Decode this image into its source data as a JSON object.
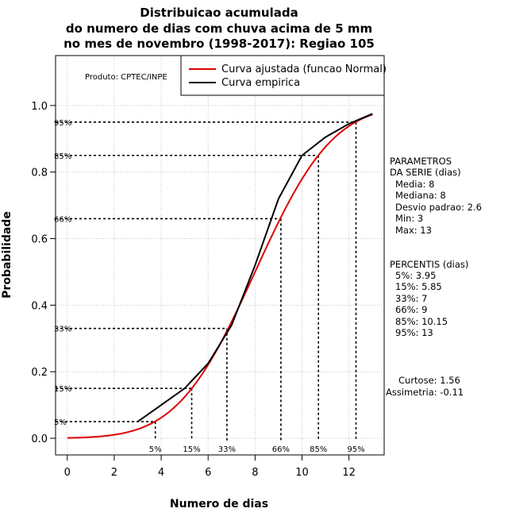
{
  "chart_data": {
    "type": "line",
    "title_lines": [
      "Distribuicao acumulada",
      "do numero de dias com chuva acima de 5 mm",
      "no mes de novembro (1998-2017): Regiao 105"
    ],
    "xlabel": "Numero de dias",
    "ylabel": "Probabilidade",
    "xlim": [
      -0.5,
      13.5
    ],
    "ylim": [
      -0.05,
      1.15
    ],
    "xticks": [
      0,
      2,
      4,
      6,
      8,
      10,
      12
    ],
    "xtick_labels": [
      "0",
      "2",
      "4",
      "6",
      "8",
      "10",
      "12"
    ],
    "yticks": [
      0.0,
      0.2,
      0.4,
      0.6,
      0.8,
      1.0
    ],
    "ytick_labels": [
      "0.0",
      "0.2",
      "0.4",
      "0.6",
      "0.8",
      "1.0"
    ],
    "grid": true,
    "producer": "Produto: CPTEC/INPE",
    "series": [
      {
        "name": "Curva ajustada (funcao Normal)",
        "color": "#dd0000",
        "kind": "normal_cdf",
        "mean": 8,
        "sd": 2.6,
        "x_range": [
          0,
          13
        ]
      },
      {
        "name": "Curva empirica",
        "color": "#000000",
        "points": [
          [
            3,
            0.05
          ],
          [
            4,
            0.1
          ],
          [
            5,
            0.15
          ],
          [
            6,
            0.225
          ],
          [
            7,
            0.34
          ],
          [
            8,
            0.52
          ],
          [
            9,
            0.72
          ],
          [
            10,
            0.85
          ],
          [
            11,
            0.905
          ],
          [
            12,
            0.945
          ],
          [
            13,
            0.975
          ]
        ]
      }
    ],
    "percentile_lines": [
      {
        "label_y": "5%",
        "label_x": "5%",
        "prob": 0.05,
        "x": 3.75
      },
      {
        "label_y": "15%",
        "label_x": "15%",
        "prob": 0.15,
        "x": 5.3
      },
      {
        "label_y": "33%",
        "label_x": "33%",
        "prob": 0.33,
        "x": 6.8
      },
      {
        "label_y": "66%",
        "label_x": "66%",
        "prob": 0.66,
        "x": 9.1
      },
      {
        "label_y": "85%",
        "label_x": "85%",
        "prob": 0.85,
        "x": 10.7
      },
      {
        "label_y": "95%",
        "label_x": "95%",
        "prob": 0.95,
        "x": 12.3
      }
    ],
    "legend_position": "top-right"
  },
  "side_panel": {
    "params_title_1": "PARAMETROS",
    "params_title_2": "DA SERIE (dias)",
    "params": [
      "Media: 8",
      "Mediana: 8",
      "Desvio padrao: 2.6",
      "Min: 3",
      "Max: 13"
    ],
    "percentis_title": "PERCENTIS (dias)",
    "percentis": [
      "5%: 3.95",
      "15%: 5.85",
      "33%: 7",
      "66%: 9",
      "85%: 10.15",
      "95%: 13"
    ],
    "curtose": "Curtose: 1.56",
    "assimetria": "Assimetria: -0.11"
  }
}
